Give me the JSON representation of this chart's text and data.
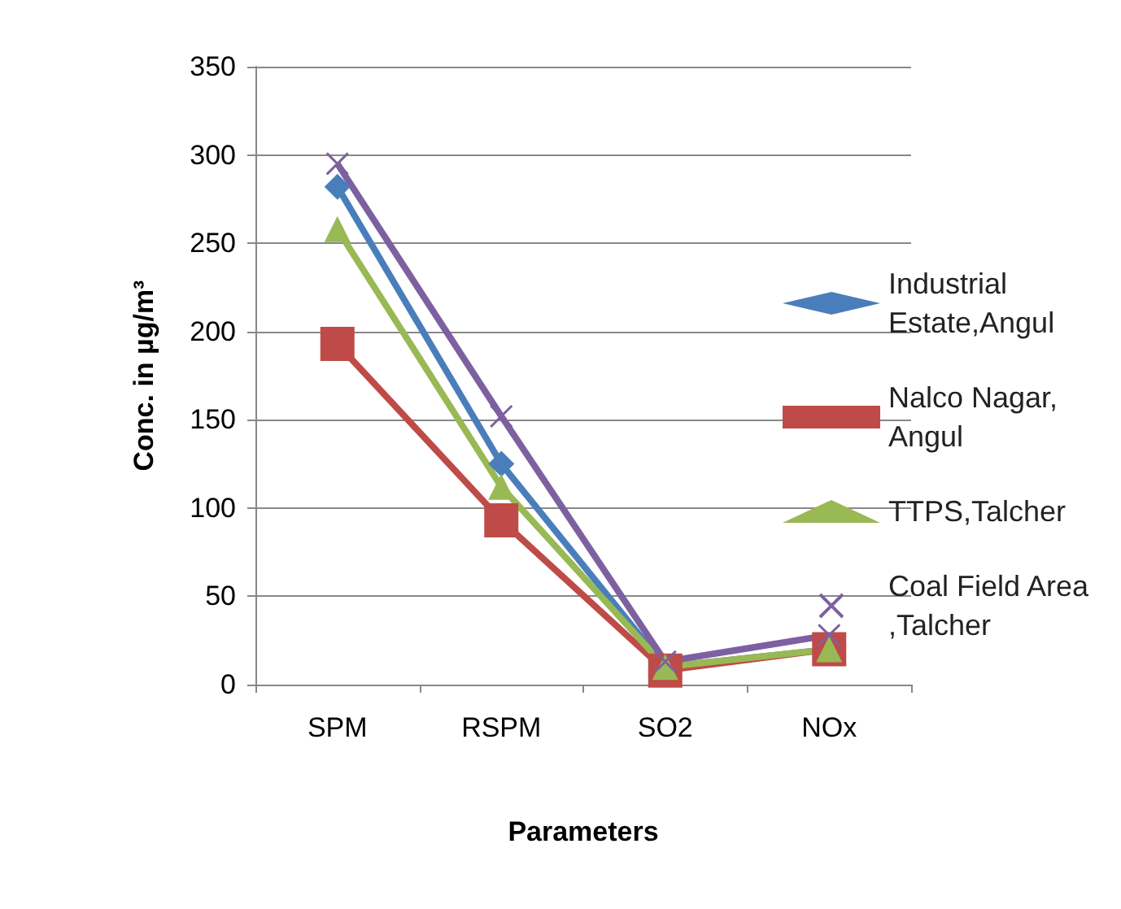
{
  "chart_data": {
    "type": "line",
    "xlabel": "Parameters",
    "ylabel": "Conc. in µg/m³",
    "categories": [
      "SPM",
      "RSPM",
      "SO2",
      "NOx"
    ],
    "series": [
      {
        "name": "Industrial Estate,Angul",
        "color": "#4a7ebb",
        "marker": "diamond",
        "values": [
          282,
          125,
          10,
          20
        ]
      },
      {
        "name": "Nalco Nagar,Angul",
        "color": "#be4b48",
        "marker": "square",
        "values": [
          193,
          93,
          8,
          20
        ]
      },
      {
        "name": "TTPS,Talcher",
        "color": "#98b954",
        "marker": "triangle",
        "values": [
          258,
          112,
          10,
          20
        ]
      },
      {
        "name": "Coal Field Area,Talcher",
        "color": "#7d60a0",
        "marker": "cross",
        "values": [
          295,
          152,
          13,
          28
        ]
      }
    ],
    "ylim": [
      0,
      350
    ],
    "yticks": [
      0,
      50,
      100,
      150,
      200,
      250,
      300,
      350
    ],
    "grid": "y",
    "legend": "right"
  }
}
